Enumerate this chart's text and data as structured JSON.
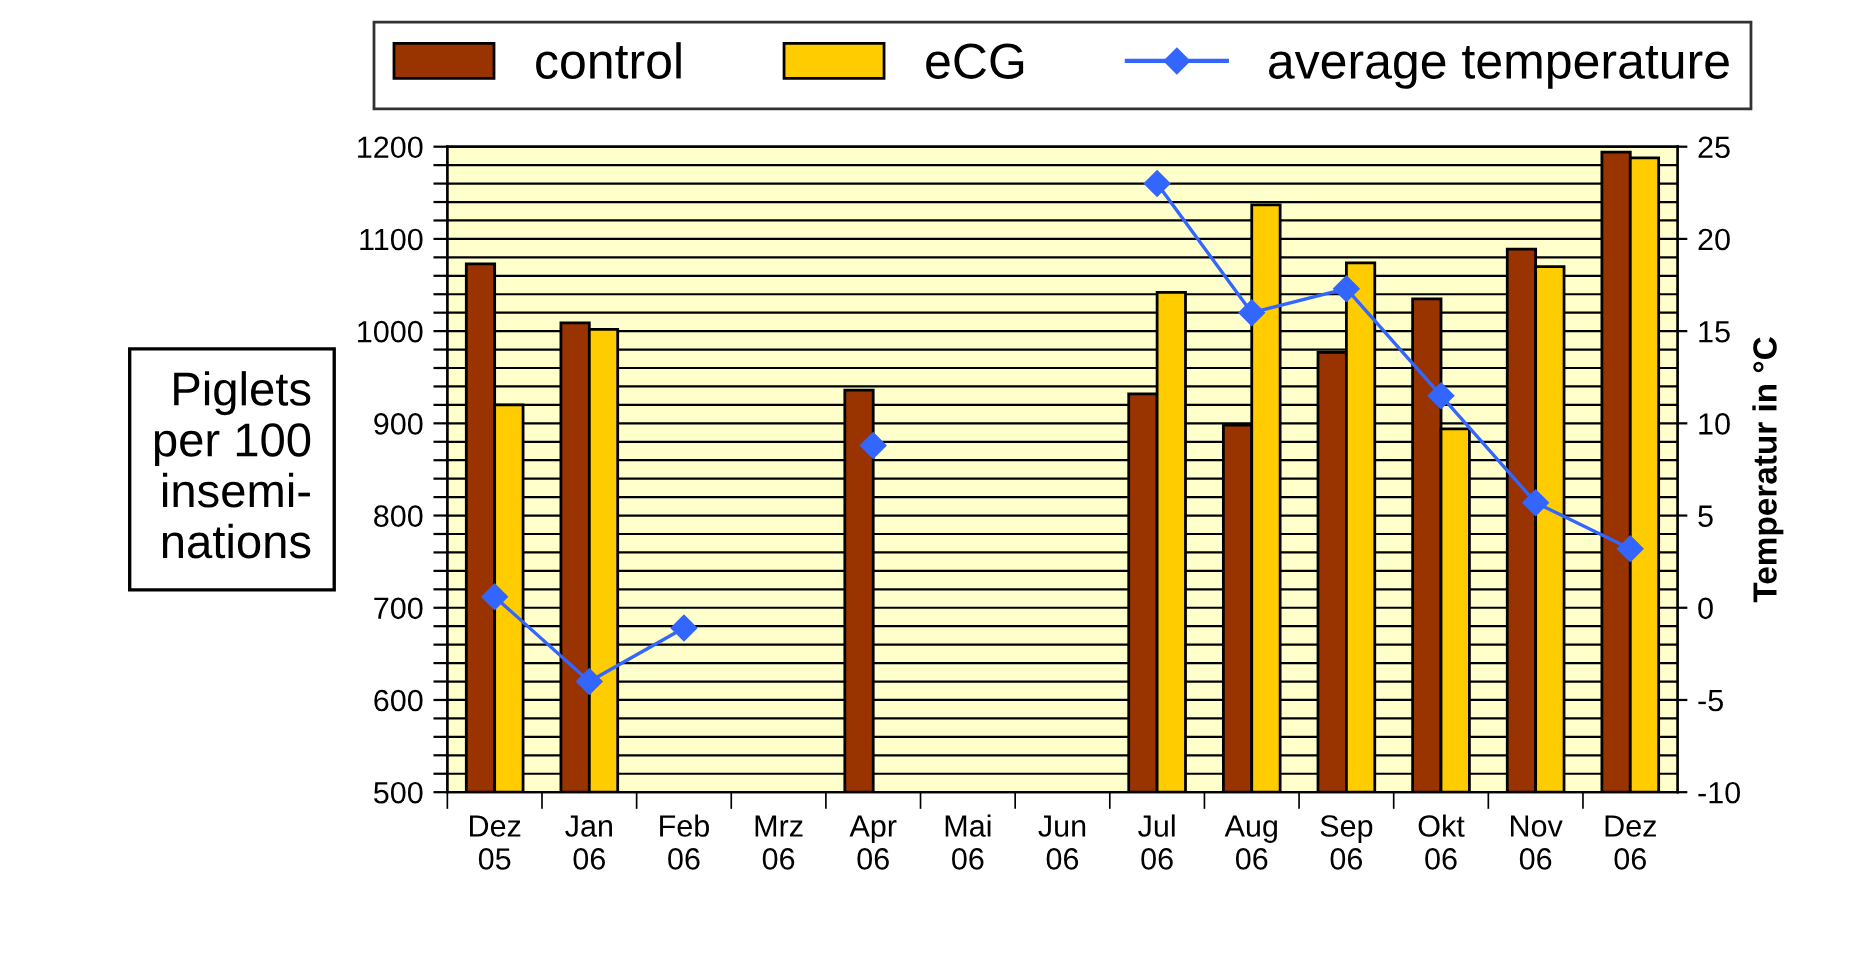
{
  "chart_data": {
    "type": "bar",
    "categories": [
      "Dez\n05",
      "Jan\n06",
      "Feb\n06",
      "Mrz\n06",
      "Apr\n06",
      "Mai\n06",
      "Jun\n06",
      "Jul\n06",
      "Aug\n06",
      "Sep\n06",
      "Okt\n06",
      "Nov\n06",
      "Dez\n06"
    ],
    "series": [
      {
        "name": "control",
        "color": "#993300",
        "values": [
          1073,
          1009,
          null,
          null,
          936,
          null,
          null,
          932,
          898,
          977,
          1035,
          1089,
          1194
        ]
      },
      {
        "name": "eCG",
        "color": "#ffcc00",
        "values": [
          920,
          1002,
          null,
          null,
          null,
          null,
          null,
          1042,
          1137,
          1074,
          894,
          1070,
          1188
        ]
      },
      {
        "name": "average temperature",
        "type": "line",
        "axis": "y2",
        "color": "#3366ff",
        "marker": "diamond",
        "values": [
          0.6,
          -4.0,
          -1.1,
          null,
          8.8,
          null,
          null,
          23.0,
          16.0,
          17.3,
          11.5,
          5.7,
          3.2
        ]
      }
    ],
    "ylabel": "Piglets\nper 100\ninsemi-\nnations",
    "y2label": "Temperatur in °C",
    "ylim": [
      500,
      1200
    ],
    "yticks": [
      500,
      {
        "value": 520,
        "label": null
      },
      {
        "value": 540,
        "label": null
      },
      {
        "value": 560,
        "label": null
      },
      {
        "value": 580,
        "label": null
      },
      600,
      {
        "value": 620,
        "label": null
      },
      {
        "value": 640,
        "label": null
      },
      {
        "value": 660,
        "label": null
      },
      {
        "value": 680,
        "label": null
      },
      700,
      {
        "value": 720,
        "label": null
      },
      {
        "value": 740,
        "label": null
      },
      {
        "value": 760,
        "label": null
      },
      {
        "value": 780,
        "label": null
      },
      800,
      {
        "value": 820,
        "label": null
      },
      {
        "value": 840,
        "label": null
      },
      {
        "value": 860,
        "label": null
      },
      {
        "value": 880,
        "label": null
      },
      900,
      {
        "value": 920,
        "label": null
      },
      {
        "value": 940,
        "label": null
      },
      {
        "value": 960,
        "label": null
      },
      {
        "value": 980,
        "label": null
      },
      1000,
      {
        "value": 1020,
        "label": null
      },
      {
        "value": 1040,
        "label": null
      },
      {
        "value": 1060,
        "label": null
      },
      {
        "value": 1080,
        "label": null
      },
      1100,
      {
        "value": 1120,
        "label": null
      },
      {
        "value": 1140,
        "label": null
      },
      {
        "value": 1160,
        "label": null
      },
      {
        "value": 1180,
        "label": null
      },
      1200
    ],
    "y2lim": [
      -10,
      25
    ],
    "y2ticks": [
      -10,
      -5,
      0,
      5,
      10,
      15,
      20,
      25
    ],
    "grid": "y",
    "legend": "top"
  }
}
